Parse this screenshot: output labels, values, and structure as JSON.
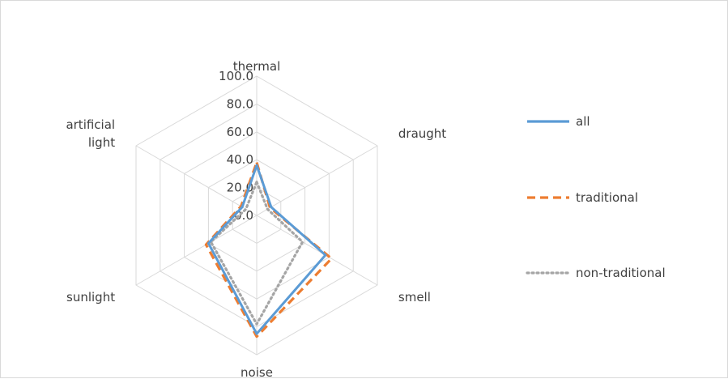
{
  "chart_data": {
    "type": "radar",
    "axes": [
      "thermal",
      "draught",
      "smell",
      "noise",
      "sunlight",
      "artificial light"
    ],
    "axis_label_lines": [
      [
        "thermal"
      ],
      [
        "draught"
      ],
      [
        "smell"
      ],
      [
        "noise"
      ],
      [
        "sunlight"
      ],
      [
        "artificial",
        "light"
      ]
    ],
    "rlim": [
      0,
      100
    ],
    "ticks": [
      0,
      20,
      40,
      60,
      80,
      100
    ],
    "tick_labels": [
      "0.0",
      "20.0",
      "40.0",
      "60.0",
      "80.0",
      "100.0"
    ],
    "grid": true,
    "legend_position": "right",
    "series": [
      {
        "name": "all",
        "values": [
          36,
          12,
          57,
          85,
          40,
          12
        ],
        "color": "#5b9bd5",
        "style": "solid"
      },
      {
        "name": "traditional",
        "values": [
          38,
          11,
          62,
          87,
          42,
          13
        ],
        "color": "#ed7d31",
        "style": "dashed"
      },
      {
        "name": "non-traditional",
        "values": [
          24,
          9,
          38,
          78,
          38,
          9
        ],
        "color": "#a5a5a5",
        "style": "dotted"
      }
    ]
  }
}
